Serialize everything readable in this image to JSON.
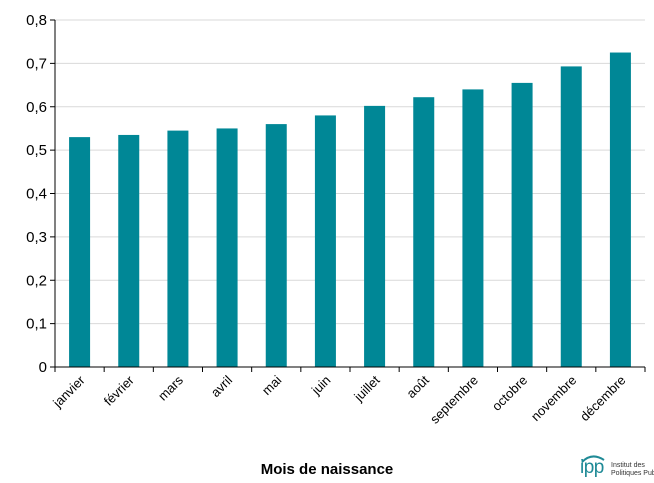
{
  "chart_data": {
    "type": "bar",
    "categories": [
      "janvier",
      "février",
      "mars",
      "avril",
      "mai",
      "juin",
      "juillet",
      "août",
      "septembre",
      "octobre",
      "novembre",
      "décembre"
    ],
    "values": [
      0.53,
      0.535,
      0.545,
      0.55,
      0.56,
      0.58,
      0.602,
      0.622,
      0.64,
      0.655,
      0.693,
      0.725
    ],
    "title": "",
    "xlabel": "Mois de naissance",
    "ylabel": "",
    "ylim": [
      0,
      0.8
    ],
    "yticks": [
      "0",
      "0,1",
      "0,2",
      "0,3",
      "0,4",
      "0,5",
      "0,6",
      "0,7",
      "0,8"
    ],
    "bar_color": "#008796",
    "grid": true,
    "legend": "none"
  },
  "logo": {
    "mark": "ipp",
    "line1": "Institut des",
    "line2": "Politiques Publiques"
  }
}
